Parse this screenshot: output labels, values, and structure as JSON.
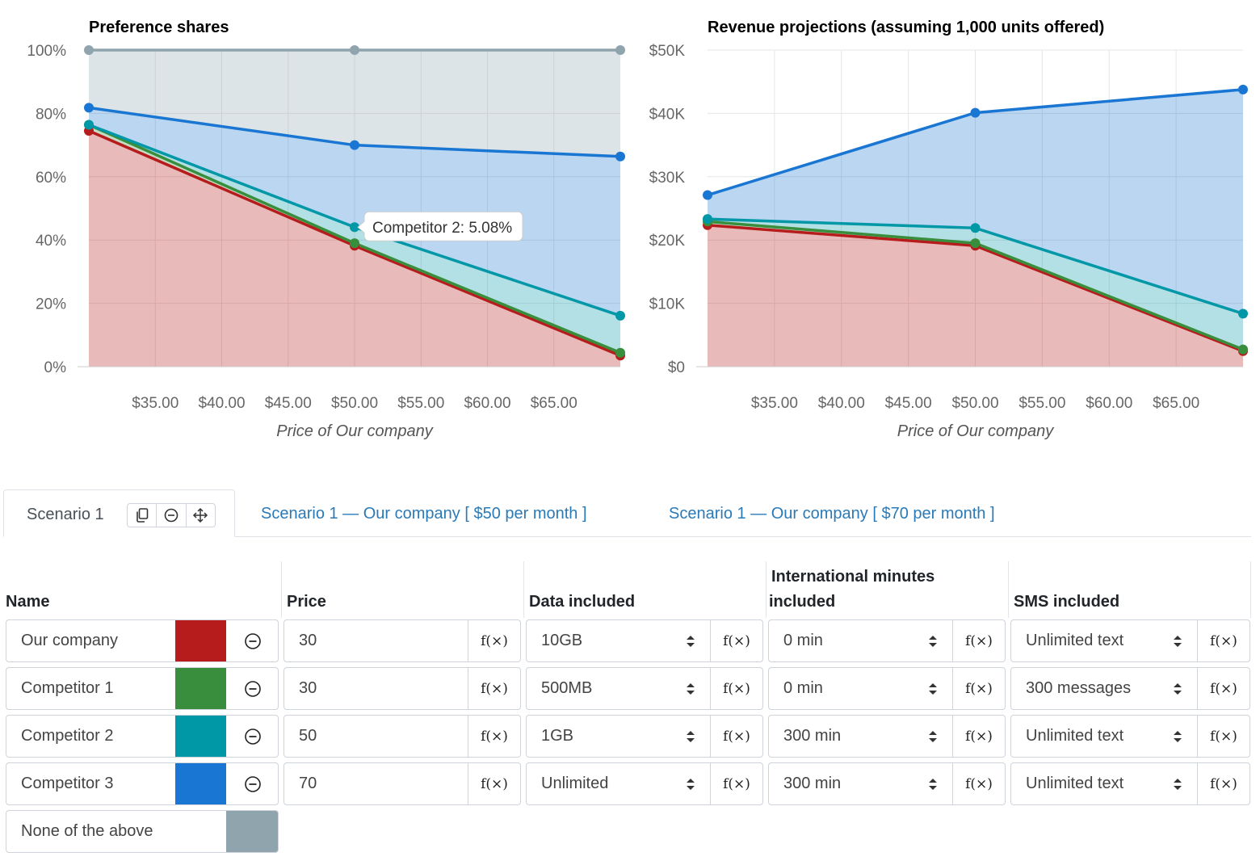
{
  "colors": {
    "our_company": "#b71c1c",
    "competitor_1": "#388e3c",
    "competitor_2": "#0097a7",
    "competitor_3": "#1976d2",
    "none_of_above": "#90a4ae"
  },
  "chart_data": [
    {
      "type": "area",
      "stacked": true,
      "title": "Preference shares",
      "xlabel": "Price of Our company",
      "x_tick_labels": [
        "$35.00",
        "$40.00",
        "$45.00",
        "$50.00",
        "$55.00",
        "$60.00",
        "$65.00"
      ],
      "x_ticks": [
        35,
        40,
        45,
        50,
        55,
        60,
        65
      ],
      "y_tick_labels": [
        "0%",
        "20%",
        "40%",
        "60%",
        "80%",
        "100%"
      ],
      "y_ticks": [
        0,
        20,
        40,
        60,
        80,
        100
      ],
      "xlim": [
        30,
        70
      ],
      "ylim": [
        0,
        100
      ],
      "x": [
        30,
        50,
        70
      ],
      "series": [
        {
          "name": "Our company",
          "color": "#b71c1c",
          "values": [
            74.5,
            38.2,
            3.5
          ]
        },
        {
          "name": "Competitor 1",
          "color": "#388e3c",
          "values": [
            1.9,
            0.8,
            0.9
          ]
        },
        {
          "name": "Competitor 2",
          "color": "#0097a7",
          "values": [
            0.0,
            5.08,
            11.7
          ]
        },
        {
          "name": "Competitor 3",
          "color": "#1976d2",
          "values": [
            5.4,
            25.9,
            50.3
          ]
        },
        {
          "name": "None of the above",
          "color": "#90a4ae",
          "values": [
            18.2,
            30.02,
            33.6
          ]
        }
      ],
      "tooltip": "Competitor 2: 5.08%",
      "grid": true
    },
    {
      "type": "area",
      "stacked": true,
      "title": "Revenue projections (assuming 1,000 units offered)",
      "xlabel": "Price of Our company",
      "x_tick_labels": [
        "$35.00",
        "$40.00",
        "$45.00",
        "$50.00",
        "$55.00",
        "$60.00",
        "$65.00"
      ],
      "x_ticks": [
        35,
        40,
        45,
        50,
        55,
        60,
        65
      ],
      "y_tick_labels": [
        "$0",
        "$10K",
        "$20K",
        "$30K",
        "$40K",
        "$50K"
      ],
      "y_ticks": [
        0,
        10000,
        20000,
        30000,
        40000,
        50000
      ],
      "xlim": [
        30,
        70
      ],
      "ylim": [
        0,
        50000
      ],
      "x": [
        30,
        50,
        70
      ],
      "series": [
        {
          "name": "Our company",
          "color": "#b71c1c",
          "values": [
            22350,
            19100,
            2450
          ]
        },
        {
          "name": "Competitor 1",
          "color": "#388e3c",
          "values": [
            570,
            400,
            270
          ]
        },
        {
          "name": "Competitor 2",
          "color": "#0097a7",
          "values": [
            400,
            2400,
            5650
          ]
        },
        {
          "name": "Competitor 3",
          "color": "#1976d2",
          "values": [
            3780,
            18200,
            35400
          ]
        }
      ],
      "grid": true
    }
  ],
  "tabs": {
    "active": "Scenario 1",
    "others": [
      "Scenario 1 — Our company [ $50 per month ]",
      "Scenario 1 — Our company [ $70 per month ]"
    ]
  },
  "table": {
    "headers": {
      "name": "Name",
      "price": "Price",
      "data": "Data included",
      "intl_line1": "International minutes",
      "intl_line2": "included",
      "sms": "SMS included"
    },
    "fx_label": "f(×)",
    "rows": [
      {
        "name": "Our company",
        "price": "30",
        "data": "10GB",
        "intl": "0 min",
        "sms": "Unlimited text"
      },
      {
        "name": "Competitor 1",
        "price": "30",
        "data": "500MB",
        "intl": "0 min",
        "sms": "300 messages"
      },
      {
        "name": "Competitor 2",
        "price": "50",
        "data": "1GB",
        "intl": "300 min",
        "sms": "Unlimited text"
      },
      {
        "name": "Competitor 3",
        "price": "70",
        "data": "Unlimited",
        "intl": "300 min",
        "sms": "Unlimited text"
      }
    ],
    "none_label": "None of the above"
  }
}
